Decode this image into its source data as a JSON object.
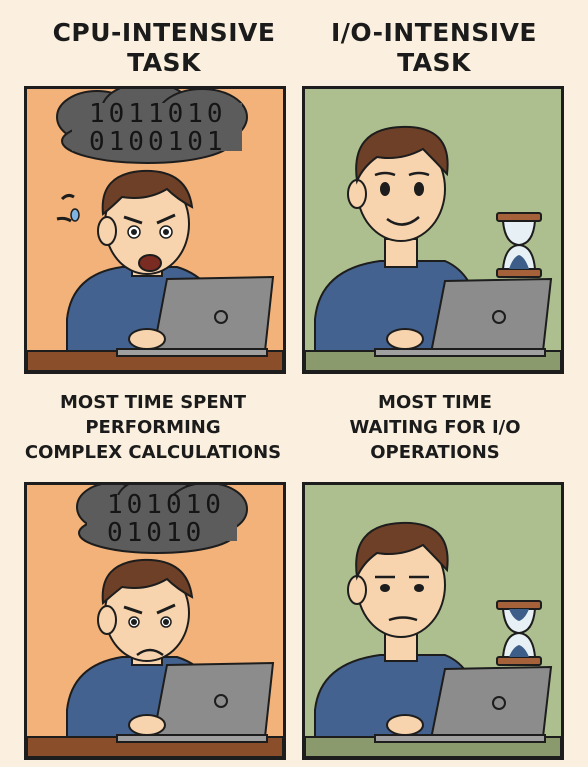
{
  "headings": {
    "cpu_title_line1": "CPU-INTENSIVE",
    "cpu_title_line2": "TASK",
    "io_title_line1": "I/O-INTENSIVE",
    "io_title_line2": "TASK"
  },
  "captions": {
    "cpu_line1": "MOST TIME SPENT",
    "cpu_line2": "PERFORMING",
    "cpu_line3": "COMPLEX CALCULATIONS",
    "io_line1": "MOST TIME",
    "io_line2": "WAITING FOR I/O",
    "io_line3": "OPERATIONS"
  },
  "panels": {
    "cpu_top_binary_1": "1011010",
    "cpu_top_binary_2": "0100101",
    "cpu_bottom_binary_1": "101010",
    "cpu_bottom_binary_2": "01010"
  },
  "colors": {
    "cpu_bg": "#f2b27a",
    "io_bg": "#aebf8f",
    "cloud": "#5c5c5c",
    "shirt": "#44628f",
    "hair": "#6e4027",
    "skin": "#f7d4ae",
    "laptop": "#8c8c8c",
    "desk": "#8a4e2b",
    "hourglass_wood": "#a5623a",
    "sand": "#3e5e8a"
  }
}
